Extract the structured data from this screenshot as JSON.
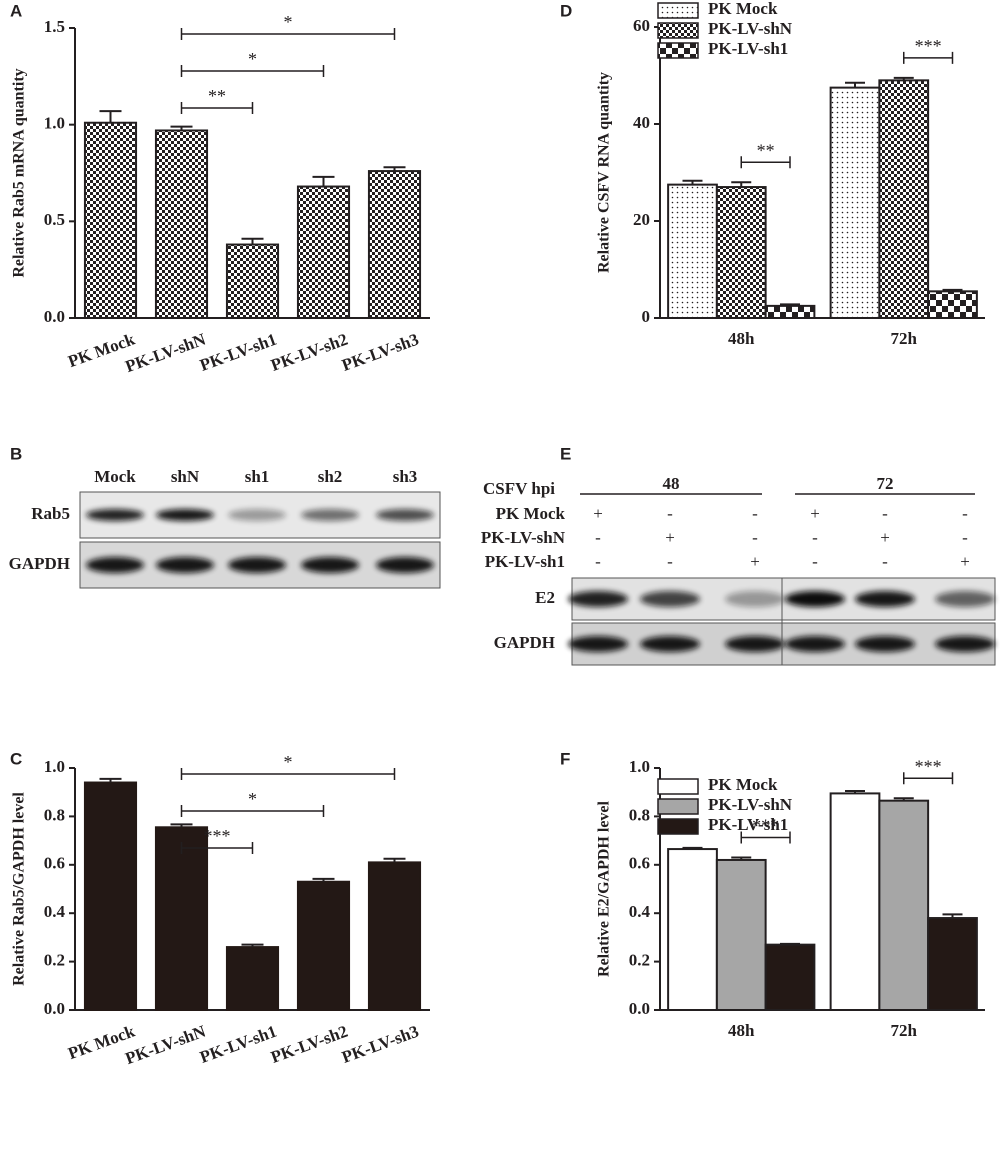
{
  "chart_data": [
    {
      "type": "bar",
      "label": "A",
      "ylabel": "Relative Rab5 mRNA quantity",
      "categories": [
        "PK Mock",
        "PK-LV-shN",
        "PK-LV-sh1",
        "PK-LV-sh2",
        "PK-LV-sh3"
      ],
      "values": [
        1.01,
        0.97,
        0.38,
        0.68,
        0.76
      ],
      "errors": [
        0.06,
        0.02,
        0.03,
        0.05,
        0.02
      ],
      "color": "#231f20",
      "pattern": "checker",
      "ylim": [
        0,
        1.5
      ],
      "yticks": [
        {
          "value": 0,
          "label": "0.0"
        },
        {
          "value": 0.5,
          "label": "0.5"
        },
        {
          "value": 1,
          "label": "1.0"
        },
        {
          "value": 1.5,
          "label": "1.5"
        }
      ],
      "annotations": [
        {
          "text": "**",
          "from": 1,
          "to": 2
        },
        {
          "text": "*",
          "from": 1,
          "to": 3
        },
        {
          "text": "*",
          "from": 1,
          "to": 4
        }
      ]
    },
    {
      "type": "bar",
      "label": "D",
      "ylabel": "Relative CSFV RNA quantity",
      "categories": [
        "48h",
        "72h"
      ],
      "series": [
        {
          "name": "PK Mock",
          "color": "#231f20",
          "pattern": "dots",
          "values": [
            27.5,
            47.5
          ],
          "errors": [
            0.8,
            1.0
          ]
        },
        {
          "name": "PK-LV-shN",
          "color": "#231f20",
          "pattern": "checker",
          "values": [
            27,
            49
          ],
          "errors": [
            1.0,
            0.5
          ]
        },
        {
          "name": "PK-LV-sh1",
          "color": "#231f20",
          "pattern": "bigcheck",
          "values": [
            2.5,
            5.5
          ],
          "errors": [
            0.3,
            0.3
          ]
        }
      ],
      "ylim": [
        0,
        60
      ],
      "yticks": [
        0,
        20,
        40,
        60
      ],
      "legend": "upper left",
      "annotations": [
        {
          "text": "**",
          "category": 0,
          "from": 1,
          "to": 2
        },
        {
          "text": "***",
          "category": 1,
          "from": 1,
          "to": 2
        }
      ]
    },
    {
      "type": "bar",
      "label": "C",
      "ylabel": "Relative Rab5/GAPDH level",
      "categories": [
        "PK Mock",
        "PK-LV-shN",
        "PK-LV-sh1",
        "PK-LV-sh2",
        "PK-LV-sh3"
      ],
      "values": [
        0.94,
        0.755,
        0.26,
        0.53,
        0.61
      ],
      "errors": [
        0.015,
        0.012,
        0.01,
        0.012,
        0.015
      ],
      "color": "#231815",
      "ylim": [
        0,
        1
      ],
      "yticks": [
        {
          "value": 0,
          "label": "0.0"
        },
        {
          "value": 0.2,
          "label": "0.2"
        },
        {
          "value": 0.4,
          "label": "0.4"
        },
        {
          "value": 0.6,
          "label": "0.6"
        },
        {
          "value": 0.8,
          "label": "0.8"
        },
        {
          "value": 1,
          "label": "1.0"
        }
      ],
      "annotations": [
        {
          "text": "***",
          "from": 1,
          "to": 2
        },
        {
          "text": "*",
          "from": 1,
          "to": 3
        },
        {
          "text": "*",
          "from": 1,
          "to": 4
        }
      ]
    },
    {
      "type": "bar",
      "label": "F",
      "ylabel": "Relative E2/GAPDH level",
      "categories": [
        "48h",
        "72h"
      ],
      "series": [
        {
          "name": "PK Mock",
          "color": "#ffffff",
          "values": [
            0.665,
            0.895
          ],
          "errors": [
            0.005,
            0.01
          ]
        },
        {
          "name": "PK-LV-shN",
          "color": "#a6a6a6",
          "values": [
            0.62,
            0.865
          ],
          "errors": [
            0.01,
            0.01
          ]
        },
        {
          "name": "PK-LV-sh1",
          "color": "#231815",
          "values": [
            0.27,
            0.38
          ],
          "errors": [
            0.003,
            0.015
          ]
        }
      ],
      "ylim": [
        0,
        1
      ],
      "yticks": [
        {
          "value": 0,
          "label": "0.0"
        },
        {
          "value": 0.2,
          "label": "0.2"
        },
        {
          "value": 0.4,
          "label": "0.4"
        },
        {
          "value": 0.6,
          "label": "0.6"
        },
        {
          "value": 0.8,
          "label": "0.8"
        },
        {
          "value": 1,
          "label": "1.0"
        }
      ],
      "legend": "upper left",
      "annotations": [
        {
          "text": "***",
          "category": 0,
          "from": 1,
          "to": 2
        },
        {
          "text": "***",
          "category": 1,
          "from": 1,
          "to": 2
        }
      ]
    }
  ],
  "blots": [
    {
      "label": "B",
      "lanes": [
        "Mock",
        "shN",
        "sh1",
        "sh2",
        "sh3"
      ],
      "rows": [
        "Rab5",
        "GAPDH"
      ]
    },
    {
      "label": "E",
      "header": "CSFV hpi",
      "groups": [
        "48",
        "72"
      ],
      "conditions": [
        {
          "name": "PK Mock",
          "signs": [
            "+",
            "-",
            "-",
            "+",
            "-",
            "-"
          ]
        },
        {
          "name": "PK-LV-shN",
          "signs": [
            "-",
            "+",
            "-",
            "-",
            "+",
            "-"
          ]
        },
        {
          "name": "PK-LV-sh1",
          "signs": [
            "-",
            "-",
            "+",
            "-",
            "-",
            "+"
          ]
        }
      ],
      "rows": [
        "E2",
        "GAPDH"
      ]
    }
  ]
}
